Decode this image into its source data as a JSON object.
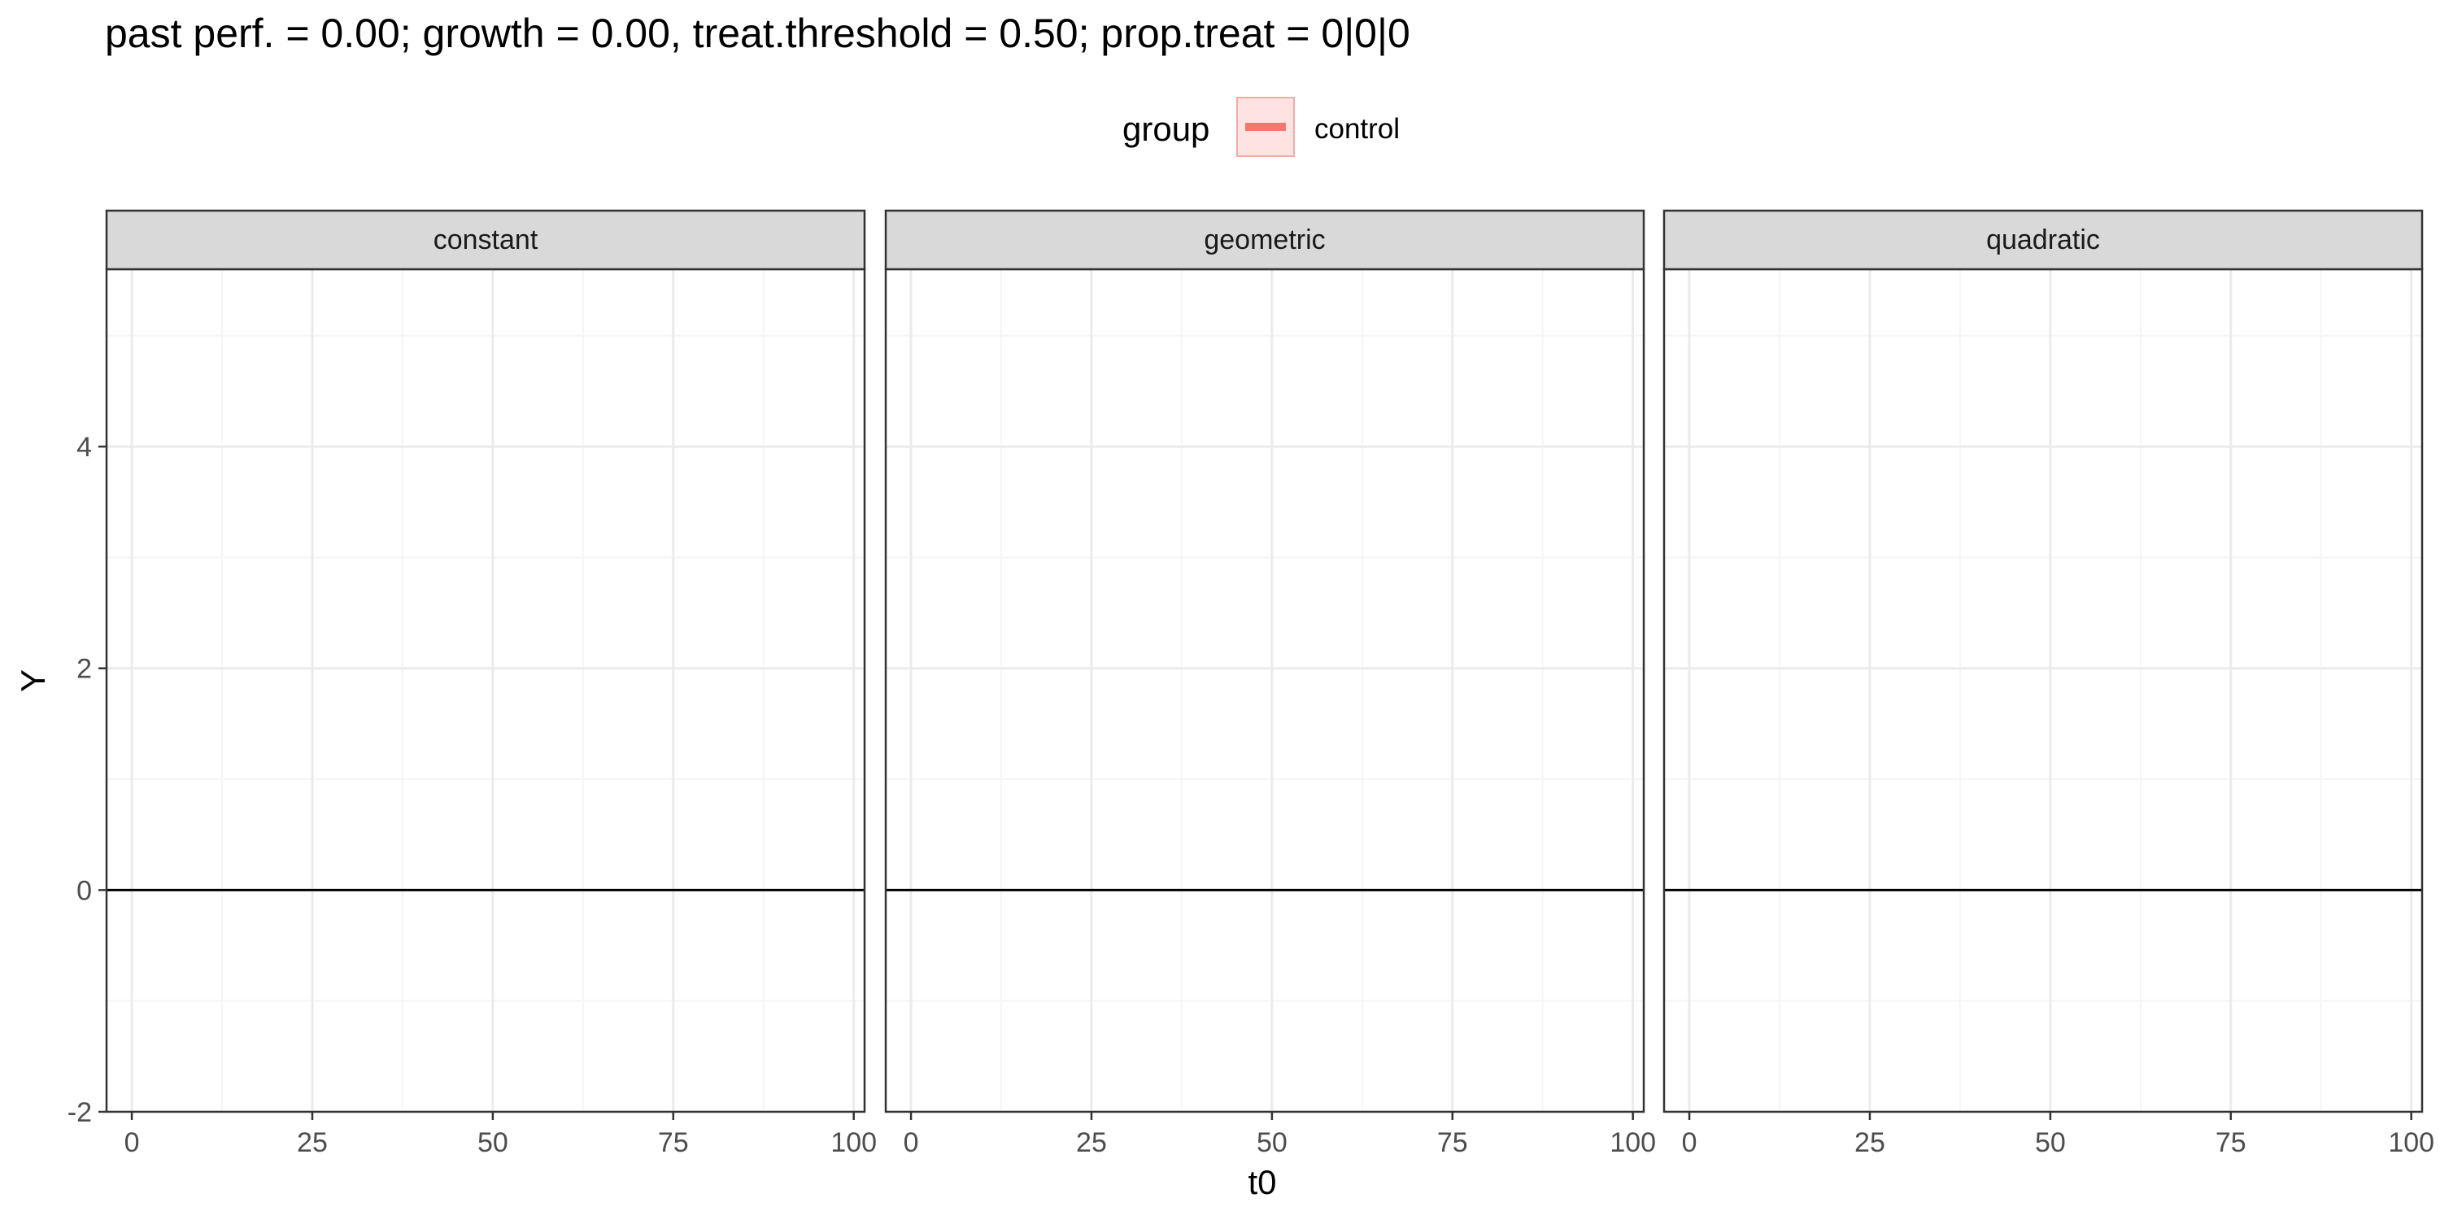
{
  "chart_data": {
    "type": "line",
    "title": "past perf. = 0.00; growth = 0.00,  treat.threshold = 0.50;  prop.treat = 0|0|0",
    "xlabel": "t0",
    "ylabel": "Y",
    "legend": {
      "title": "group",
      "placement": "top",
      "entries": [
        {
          "label": "control",
          "color": "#F8766D"
        }
      ]
    },
    "panels": [
      "constant",
      "geometric",
      "quadratic"
    ],
    "xlim": [
      -3.5,
      101.5
    ],
    "ylim": [
      -2,
      5.6
    ],
    "x_ticks": [
      0,
      25,
      50,
      75,
      100
    ],
    "x_minor": [
      12.5,
      37.5,
      62.5,
      87.5
    ],
    "y_ticks": [
      -2,
      0,
      2,
      4
    ],
    "y_minor": [
      -1,
      1,
      3,
      5
    ],
    "series": [
      {
        "name": "control",
        "color": "#F8766D",
        "panels": {
          "constant": [],
          "geometric": [],
          "quadratic": []
        }
      }
    ],
    "hline": {
      "y": 0,
      "color": "#000000"
    },
    "grid": true,
    "colors": {
      "strip_fill": "#D9D9D9",
      "grid_major": "#EBEBEB",
      "grid_minor": "#F5F5F5",
      "border": "#333333",
      "text": "#000000",
      "tick_text": "#4D4D4D"
    }
  }
}
